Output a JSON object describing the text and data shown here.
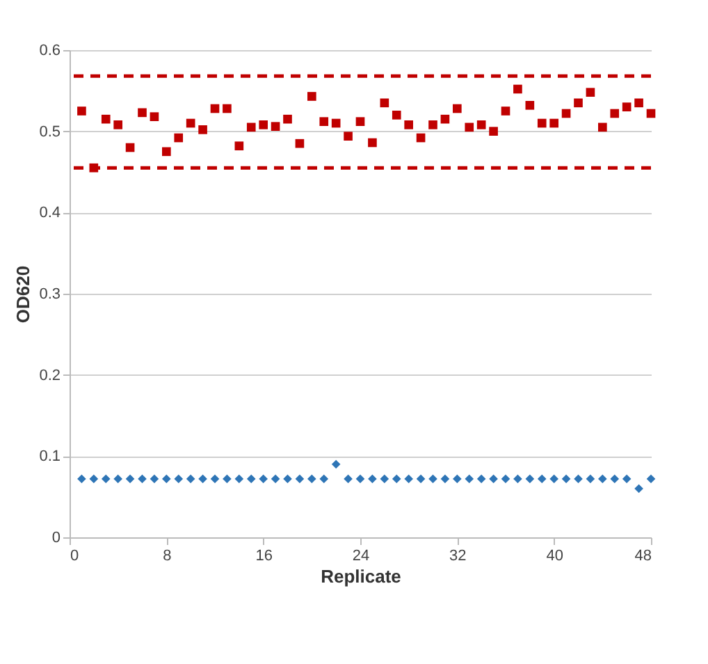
{
  "chart_data": {
    "type": "scatter",
    "xlabel": "Replicate",
    "ylabel": "OD620",
    "x": [
      1,
      2,
      3,
      4,
      5,
      6,
      7,
      8,
      9,
      10,
      11,
      12,
      13,
      14,
      15,
      16,
      17,
      18,
      19,
      20,
      21,
      22,
      23,
      24,
      25,
      26,
      27,
      28,
      29,
      30,
      31,
      32,
      33,
      34,
      35,
      36,
      37,
      38,
      39,
      40,
      41,
      42,
      43,
      44,
      45,
      46,
      47,
      48
    ],
    "series": [
      {
        "color": "#c00000",
        "marker": "square",
        "values": [
          0.525,
          0.455,
          0.515,
          0.508,
          0.48,
          0.523,
          0.518,
          0.475,
          0.492,
          0.51,
          0.502,
          0.528,
          0.528,
          0.482,
          0.505,
          0.508,
          0.506,
          0.515,
          0.485,
          0.543,
          0.512,
          0.51,
          0.494,
          0.512,
          0.486,
          0.535,
          0.52,
          0.508,
          0.492,
          0.508,
          0.515,
          0.528,
          0.505,
          0.508,
          0.5,
          0.525,
          0.552,
          0.532,
          0.51,
          0.51,
          0.522,
          0.535,
          0.548,
          0.505,
          0.522,
          0.53,
          0.535,
          0.522
        ]
      },
      {
        "color": "#2e75b6",
        "marker": "diamond",
        "values": [
          0.072,
          0.072,
          0.072,
          0.072,
          0.072,
          0.072,
          0.072,
          0.072,
          0.072,
          0.072,
          0.072,
          0.072,
          0.072,
          0.072,
          0.072,
          0.072,
          0.072,
          0.072,
          0.072,
          0.072,
          0.072,
          0.09,
          0.072,
          0.072,
          0.072,
          0.072,
          0.072,
          0.072,
          0.072,
          0.072,
          0.072,
          0.072,
          0.072,
          0.072,
          0.072,
          0.072,
          0.072,
          0.072,
          0.072,
          0.072,
          0.072,
          0.072,
          0.072,
          0.072,
          0.072,
          0.072,
          0.06,
          0.072
        ]
      }
    ],
    "xlim": [
      0,
      48
    ],
    "xticks": [
      0,
      8,
      16,
      24,
      32,
      40,
      48
    ],
    "ylim": [
      0,
      0.6
    ],
    "yticks": [
      0,
      0.1,
      0.2,
      0.3,
      0.4,
      0.5,
      0.6
    ],
    "grid": "y",
    "ref_lines": [
      {
        "axis": "y",
        "value": 0.568,
        "color": "#c00000",
        "line_style": "dashed"
      },
      {
        "axis": "y",
        "value": 0.455,
        "color": "#c00000",
        "line_style": "dashed"
      }
    ]
  }
}
